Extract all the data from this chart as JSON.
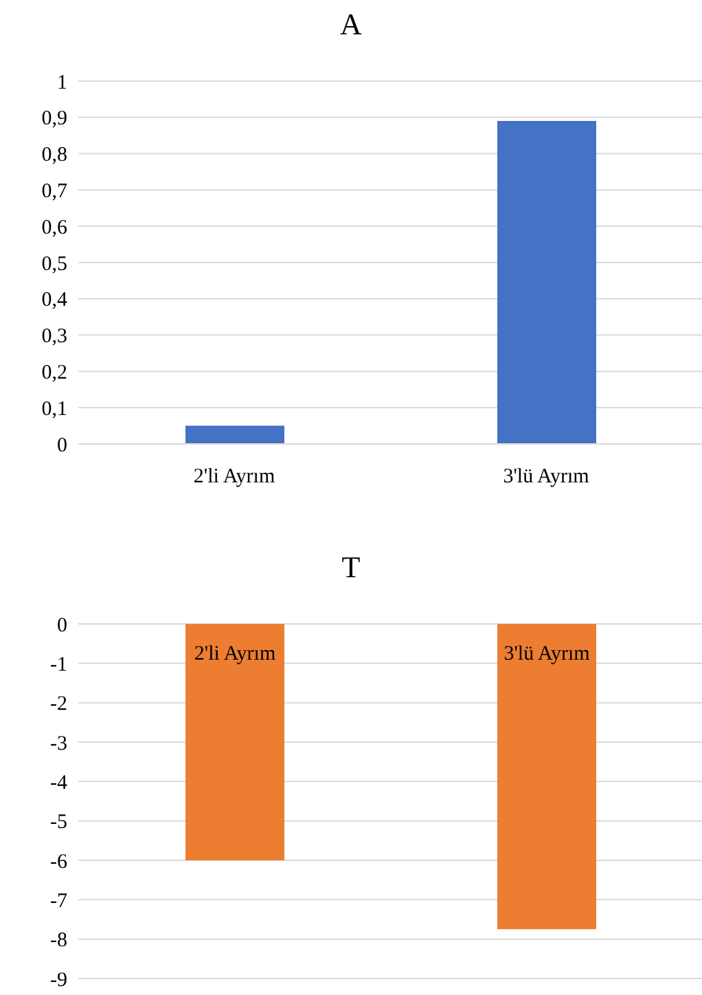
{
  "chart_data": [
    {
      "type": "bar",
      "title": "A",
      "categories": [
        "2'li Ayrım",
        "3'lü Ayrım"
      ],
      "values": [
        0.05,
        0.89
      ],
      "color": "#4472c4",
      "ylim": [
        0,
        1
      ],
      "yticks": [
        0,
        {
          "value": 0.1,
          "label": "0,1"
        },
        {
          "value": 0.2,
          "label": "0,2"
        },
        {
          "value": 0.3,
          "label": "0,3"
        },
        {
          "value": 0.4,
          "label": "0,4"
        },
        {
          "value": 0.5,
          "label": "0,5"
        },
        {
          "value": 0.6,
          "label": "0,6"
        },
        {
          "value": 0.7,
          "label": "0,7"
        },
        {
          "value": 0.8,
          "label": "0,8"
        },
        {
          "value": 0.9,
          "label": "0,9"
        },
        1
      ],
      "grid": "y"
    },
    {
      "type": "bar",
      "title": "T",
      "categories": [
        "2'li Ayrım",
        "3'lü Ayrım"
      ],
      "values": [
        -6,
        -7.75
      ],
      "color": "#ed7d31",
      "ylim": [
        -9,
        0
      ],
      "yticks": [
        0,
        -1,
        -2,
        -3,
        -4,
        -5,
        -6,
        -7,
        -8,
        -9
      ],
      "grid": "y"
    }
  ]
}
